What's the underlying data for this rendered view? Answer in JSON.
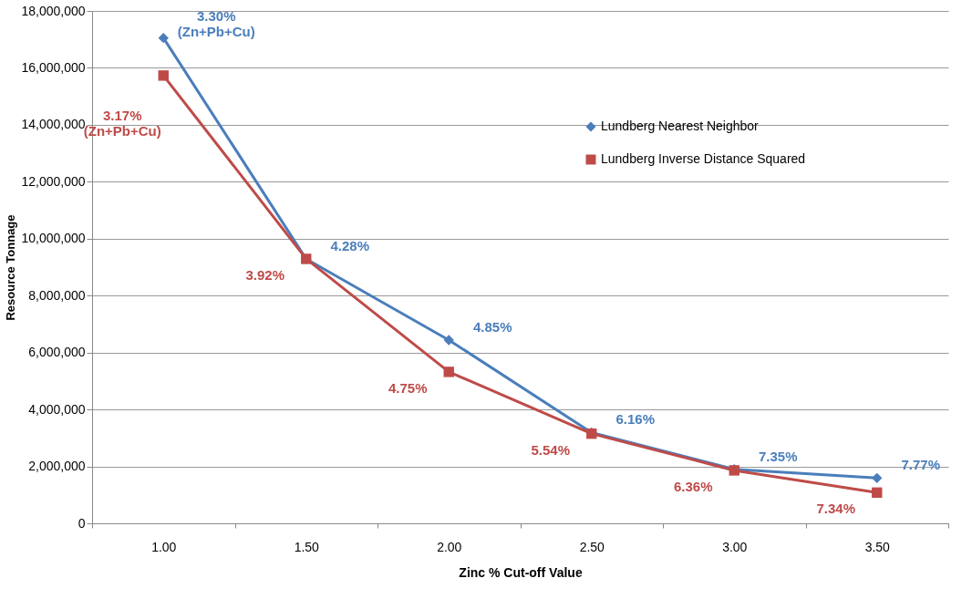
{
  "chart_data": {
    "type": "line",
    "xlabel": "Zinc % Cut-off Value",
    "ylabel": "Resource Tonnage",
    "categories": [
      "1.00",
      "1.50",
      "2.00",
      "2.50",
      "3.00",
      "3.50"
    ],
    "series": [
      {
        "name": "Lundberg Nearest Neighbor",
        "color": "#4a7ebb",
        "marker": "diamond",
        "values": [
          17050000,
          9290000,
          6440000,
          3190000,
          1900000,
          1590000
        ]
      },
      {
        "name": "Lundberg Inverse Distance Squared",
        "color": "#be4b48",
        "marker": "square",
        "values": [
          15730000,
          9290000,
          5320000,
          3150000,
          1860000,
          1080000
        ]
      }
    ],
    "annotations": [
      {
        "text": "3.30%\n(Zn+Pb+Cu)",
        "x": "1.00",
        "y": 17050000
      },
      {
        "text": "3.17%\n(Zn+Pb+Cu)",
        "x": "1.00",
        "y": 15730000
      },
      {
        "text": "4.28%",
        "x": "1.50",
        "y": 9290000
      },
      {
        "text": "3.92%",
        "x": "1.50",
        "y": 9290000
      },
      {
        "text": "4.85%",
        "x": "2.00",
        "y": 6440000
      },
      {
        "text": "4.75%",
        "x": "2.00",
        "y": 5320000
      },
      {
        "text": "6.16%",
        "x": "2.50",
        "y": 3190000
      },
      {
        "text": "5.54%",
        "x": "2.50",
        "y": 3150000
      },
      {
        "text": "7.35%",
        "x": "3.00",
        "y": 1900000
      },
      {
        "text": "6.36%",
        "x": "3.00",
        "y": 1860000
      },
      {
        "text": "7.77%",
        "x": "3.50",
        "y": 1590000
      },
      {
        "text": "7.34%",
        "x": "3.50",
        "y": 1080000
      }
    ],
    "ylim": [
      0,
      18000000
    ],
    "yticks": [
      0,
      {
        "value": 2000000,
        "label": "2,000,000"
      },
      {
        "value": 4000000,
        "label": "4,000,000"
      },
      {
        "value": 6000000,
        "label": "6,000,000"
      },
      {
        "value": 8000000,
        "label": "8,000,000"
      },
      {
        "value": 10000000,
        "label": "10,000,000"
      },
      {
        "value": 12000000,
        "label": "12,000,000"
      },
      {
        "value": 14000000,
        "label": "14,000,000"
      },
      {
        "value": 16000000,
        "label": "16,000,000"
      },
      {
        "value": 18000000,
        "label": "18,000,000"
      }
    ],
    "grid": "y",
    "legend": "right",
    "line_style": "solid"
  }
}
